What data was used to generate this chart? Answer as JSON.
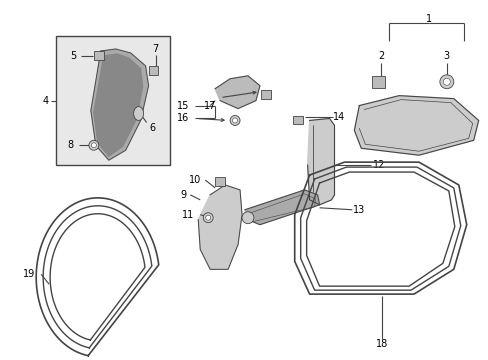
{
  "background_color": "#ffffff",
  "line_color": "#444444",
  "label_color": "#000000",
  "fig_width": 4.89,
  "fig_height": 3.6,
  "dpi": 100
}
